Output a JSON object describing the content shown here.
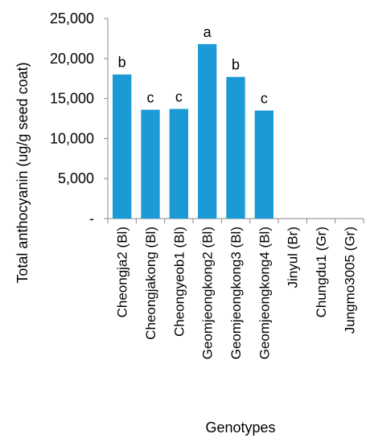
{
  "chart_data": {
    "type": "bar",
    "title": "",
    "xlabel": "Genotypes",
    "ylabel": "Total anthocyanin (ug/g seed coat)",
    "ylim": [
      0,
      25000
    ],
    "yticks": [
      0,
      5000,
      10000,
      15000,
      20000,
      25000
    ],
    "ytick_labels": [
      "-",
      "5,000",
      "10,000",
      "15,000",
      "20,000",
      "25,000"
    ],
    "grid": false,
    "legend": "none",
    "bar_color": "#1b9ad6",
    "categories": [
      "Cheongja2 (Bl)",
      "Cheongjakong (Bl)",
      "Cheongyeob1 (Bl)",
      "Geomjeongkong2 (Bl)",
      "Geomjeongkong3 (Bl)",
      "Geomjeongkong4 (Bl)",
      "Jinyul (Br)",
      "Chungdu1 (Gr)",
      "Jungmo3005 (Gr)"
    ],
    "values": [
      18000,
      13600,
      13700,
      21800,
      17700,
      13500,
      0,
      0,
      0
    ],
    "annotations": [
      "b",
      "c",
      "c",
      "a",
      "b",
      "c",
      "",
      "",
      ""
    ]
  }
}
